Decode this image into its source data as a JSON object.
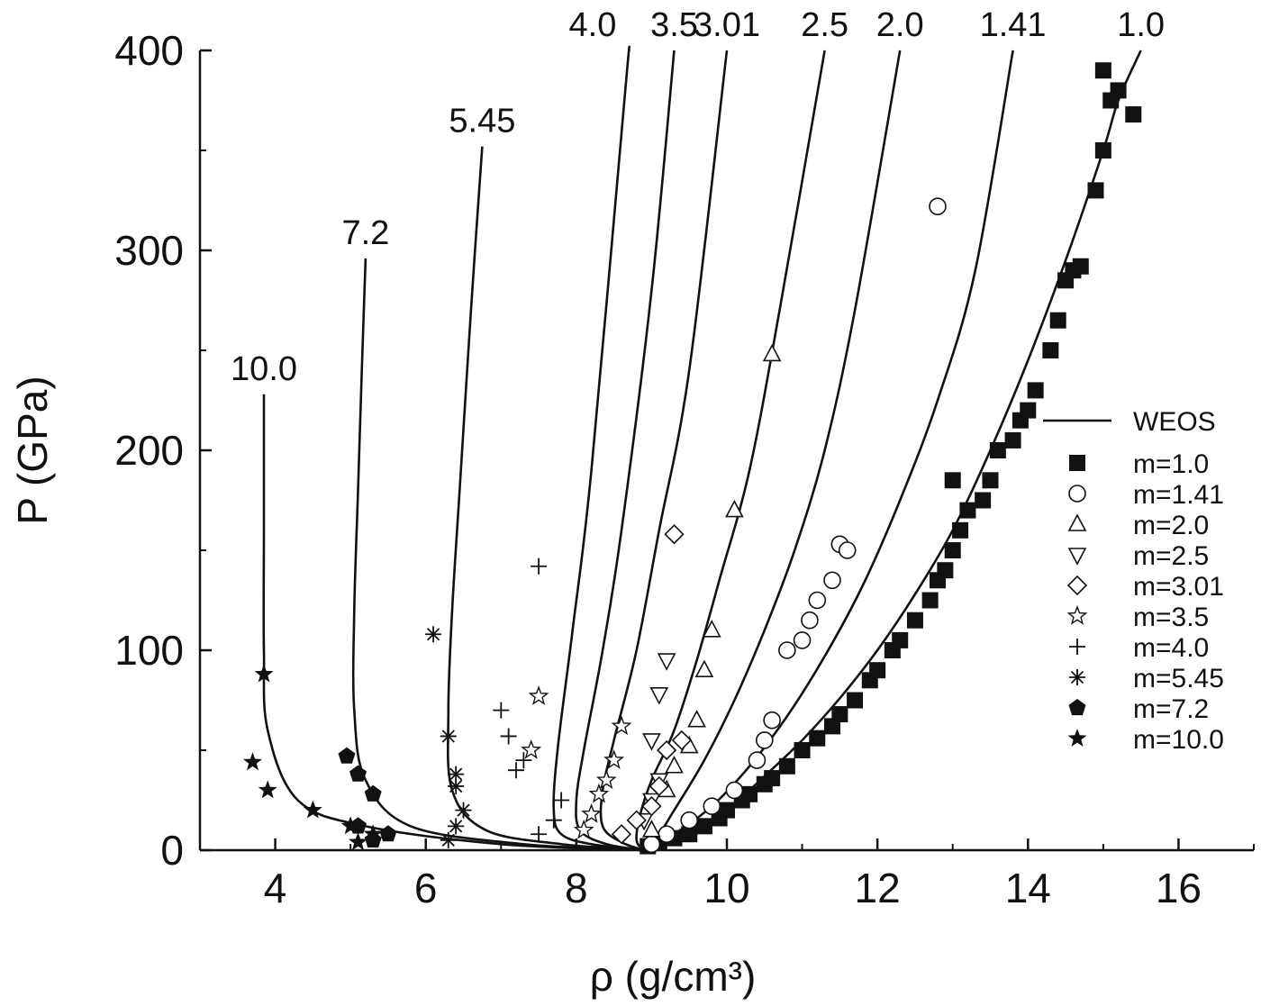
{
  "chart_data": {
    "type": "scatter",
    "xlabel": "ρ (g/cm³)",
    "ylabel": "P (GPa)",
    "xlim": [
      3,
      17
    ],
    "ylim": [
      0,
      400
    ],
    "xticks": [
      4,
      6,
      8,
      10,
      12,
      14,
      16
    ],
    "yticks": [
      0,
      100,
      200,
      300,
      400
    ],
    "grid": false,
    "legend_position": "right",
    "legend": [
      "WEOS",
      "m=1.0",
      "m=1.41",
      "m=2.0",
      "m=2.5",
      "m=3.01",
      "m=3.5",
      "m=4.0",
      "m=5.45",
      "m=7.2",
      "m=10.0"
    ],
    "weos_curves": [
      {
        "label": "1.0",
        "points": [
          [
            8.95,
            0
          ],
          [
            9.5,
            8
          ],
          [
            10,
            20
          ],
          [
            10.5,
            37
          ],
          [
            11,
            55
          ],
          [
            11.5,
            76
          ],
          [
            12,
            100
          ],
          [
            12.5,
            128
          ],
          [
            13,
            160
          ],
          [
            13.5,
            200
          ],
          [
            14,
            245
          ],
          [
            14.5,
            295
          ],
          [
            15,
            350
          ],
          [
            15.2,
            375
          ],
          [
            15.5,
            400
          ]
        ]
      },
      {
        "label": "1.41",
        "points": [
          [
            8.93,
            0
          ],
          [
            9.3,
            8
          ],
          [
            9.8,
            22
          ],
          [
            10.3,
            42
          ],
          [
            10.8,
            67
          ],
          [
            11.3,
            97
          ],
          [
            11.8,
            132
          ],
          [
            12.3,
            175
          ],
          [
            12.8,
            225
          ],
          [
            13.3,
            290
          ],
          [
            13.8,
            400
          ]
        ]
      },
      {
        "label": "2.0",
        "points": [
          [
            8.9,
            0
          ],
          [
            9.05,
            5
          ],
          [
            9.3,
            20
          ],
          [
            9.7,
            45
          ],
          [
            10.1,
            75
          ],
          [
            10.5,
            110
          ],
          [
            10.9,
            150
          ],
          [
            11.3,
            200
          ],
          [
            11.7,
            270
          ],
          [
            12.3,
            400
          ]
        ]
      },
      {
        "label": "2.5",
        "points": [
          [
            8.9,
            0
          ],
          [
            8.8,
            5
          ],
          [
            8.85,
            18
          ],
          [
            9.0,
            35
          ],
          [
            9.3,
            60
          ],
          [
            9.6,
            95
          ],
          [
            9.9,
            135
          ],
          [
            10.3,
            190
          ],
          [
            10.7,
            270
          ],
          [
            11.3,
            400
          ]
        ]
      },
      {
        "label": "3.01",
        "points": [
          [
            8.9,
            0
          ],
          [
            8.6,
            4
          ],
          [
            8.35,
            12
          ],
          [
            8.35,
            30
          ],
          [
            8.5,
            55
          ],
          [
            8.8,
            100
          ],
          [
            9.1,
            160
          ],
          [
            9.5,
            240
          ],
          [
            10.0,
            400
          ]
        ]
      },
      {
        "label": "3.5",
        "points": [
          [
            8.9,
            0
          ],
          [
            8.4,
            3
          ],
          [
            8.05,
            10
          ],
          [
            8.0,
            25
          ],
          [
            8.1,
            50
          ],
          [
            8.35,
            100
          ],
          [
            8.6,
            160
          ],
          [
            9.0,
            280
          ],
          [
            9.3,
            400
          ]
        ]
      },
      {
        "label": "4.0",
        "points": [
          [
            8.9,
            0
          ],
          [
            8.2,
            3
          ],
          [
            7.8,
            8
          ],
          [
            7.7,
            20
          ],
          [
            7.75,
            50
          ],
          [
            7.95,
            110
          ],
          [
            8.2,
            190
          ],
          [
            8.65,
            380
          ],
          [
            8.7,
            400
          ]
        ]
      },
      {
        "label": "5.45",
        "points": [
          [
            8.9,
            0
          ],
          [
            7.8,
            3
          ],
          [
            6.8,
            10
          ],
          [
            6.35,
            30
          ],
          [
            6.3,
            70
          ],
          [
            6.35,
            120
          ],
          [
            6.45,
            180
          ],
          [
            6.6,
            270
          ],
          [
            6.75,
            352
          ]
        ]
      },
      {
        "label": "7.2",
        "points": [
          [
            8.9,
            0
          ],
          [
            7.3,
            3
          ],
          [
            5.8,
            12
          ],
          [
            5.2,
            35
          ],
          [
            5.05,
            70
          ],
          [
            5.05,
            120
          ],
          [
            5.1,
            180
          ],
          [
            5.15,
            240
          ],
          [
            5.2,
            296
          ]
        ]
      },
      {
        "label": "10.0",
        "points": [
          [
            8.9,
            0
          ],
          [
            7,
            3
          ],
          [
            5.2,
            12
          ],
          [
            4.3,
            25
          ],
          [
            3.9,
            60
          ],
          [
            3.85,
            100
          ],
          [
            3.85,
            160
          ],
          [
            3.85,
            228
          ]
        ]
      }
    ],
    "series": [
      {
        "name": "m=1.0",
        "marker": "square-filled",
        "points": [
          [
            8.95,
            2
          ],
          [
            9.1,
            4
          ],
          [
            9.3,
            6
          ],
          [
            9.5,
            8
          ],
          [
            9.7,
            12
          ],
          [
            9.9,
            16
          ],
          [
            10.0,
            20
          ],
          [
            10.2,
            25
          ],
          [
            10.3,
            28
          ],
          [
            10.5,
            33
          ],
          [
            10.6,
            36
          ],
          [
            10.8,
            42
          ],
          [
            11.0,
            50
          ],
          [
            11.2,
            56
          ],
          [
            11.4,
            62
          ],
          [
            11.5,
            68
          ],
          [
            11.7,
            75
          ],
          [
            11.9,
            85
          ],
          [
            12.0,
            90
          ],
          [
            12.2,
            100
          ],
          [
            12.3,
            105
          ],
          [
            12.5,
            115
          ],
          [
            12.7,
            125
          ],
          [
            12.8,
            135
          ],
          [
            12.9,
            140
          ],
          [
            13.0,
            150
          ],
          [
            13.1,
            160
          ],
          [
            13.2,
            170
          ],
          [
            13.0,
            185
          ],
          [
            13.4,
            175
          ],
          [
            13.5,
            185
          ],
          [
            13.6,
            200
          ],
          [
            13.8,
            205
          ],
          [
            13.9,
            215
          ],
          [
            14.0,
            220
          ],
          [
            14.1,
            230
          ],
          [
            14.3,
            250
          ],
          [
            14.4,
            265
          ],
          [
            14.5,
            285
          ],
          [
            14.6,
            290
          ],
          [
            14.7,
            292
          ],
          [
            14.9,
            330
          ],
          [
            15.0,
            350
          ],
          [
            15.1,
            375
          ],
          [
            15.2,
            380
          ],
          [
            15.0,
            390
          ],
          [
            15.4,
            368
          ]
        ]
      },
      {
        "name": "m=1.41",
        "marker": "circle-open",
        "points": [
          [
            9.0,
            3
          ],
          [
            9.2,
            8
          ],
          [
            9.5,
            15
          ],
          [
            9.8,
            22
          ],
          [
            10.1,
            30
          ],
          [
            10.4,
            45
          ],
          [
            10.5,
            55
          ],
          [
            10.6,
            65
          ],
          [
            10.8,
            100
          ],
          [
            11.0,
            105
          ],
          [
            11.1,
            115
          ],
          [
            11.2,
            125
          ],
          [
            11.4,
            135
          ],
          [
            11.5,
            153
          ],
          [
            11.6,
            150
          ],
          [
            12.8,
            322
          ]
        ]
      },
      {
        "name": "m=2.0",
        "marker": "triangle-up-open",
        "points": [
          [
            9.0,
            10
          ],
          [
            9.2,
            30
          ],
          [
            9.3,
            42
          ],
          [
            9.5,
            52
          ],
          [
            9.6,
            65
          ],
          [
            9.7,
            90
          ],
          [
            9.8,
            110
          ],
          [
            10.1,
            170
          ],
          [
            10.6,
            248
          ]
        ]
      },
      {
        "name": "m=2.5",
        "marker": "triangle-down-open",
        "points": [
          [
            8.9,
            15
          ],
          [
            9.0,
            25
          ],
          [
            9.1,
            35
          ],
          [
            9.0,
            55
          ],
          [
            9.1,
            78
          ],
          [
            9.2,
            95
          ]
        ]
      },
      {
        "name": "m=3.01",
        "marker": "diamond-open",
        "points": [
          [
            8.6,
            8
          ],
          [
            8.8,
            15
          ],
          [
            9.0,
            22
          ],
          [
            9.1,
            32
          ],
          [
            9.2,
            50
          ],
          [
            9.4,
            55
          ],
          [
            9.3,
            158
          ]
        ]
      },
      {
        "name": "m=3.5",
        "marker": "star-open",
        "points": [
          [
            8.1,
            10
          ],
          [
            8.2,
            18
          ],
          [
            8.3,
            28
          ],
          [
            8.4,
            35
          ],
          [
            8.5,
            45
          ],
          [
            8.6,
            62
          ],
          [
            7.4,
            50
          ],
          [
            7.5,
            77
          ]
        ]
      },
      {
        "name": "m=4.0",
        "marker": "plus",
        "points": [
          [
            7.5,
            8
          ],
          [
            7.7,
            15
          ],
          [
            7.8,
            25
          ],
          [
            7.2,
            40
          ],
          [
            7.3,
            45
          ],
          [
            7.1,
            57
          ],
          [
            7.0,
            70
          ],
          [
            7.5,
            142
          ]
        ]
      },
      {
        "name": "m=5.45",
        "marker": "asterisk",
        "points": [
          [
            6.3,
            5
          ],
          [
            6.4,
            12
          ],
          [
            6.5,
            20
          ],
          [
            6.4,
            32
          ],
          [
            6.4,
            38
          ],
          [
            6.3,
            57
          ],
          [
            6.1,
            108
          ]
        ]
      },
      {
        "name": "m=7.2",
        "marker": "pentagon-filled",
        "points": [
          [
            5.3,
            5
          ],
          [
            5.5,
            8
          ],
          [
            5.1,
            12
          ],
          [
            5.3,
            28
          ],
          [
            5.1,
            38
          ],
          [
            4.95,
            47
          ]
        ]
      },
      {
        "name": "m=10.0",
        "marker": "star-filled",
        "points": [
          [
            5.1,
            4
          ],
          [
            5.3,
            8
          ],
          [
            5.0,
            12
          ],
          [
            4.5,
            20
          ],
          [
            3.9,
            30
          ],
          [
            3.7,
            44
          ],
          [
            3.85,
            88
          ]
        ]
      }
    ]
  }
}
